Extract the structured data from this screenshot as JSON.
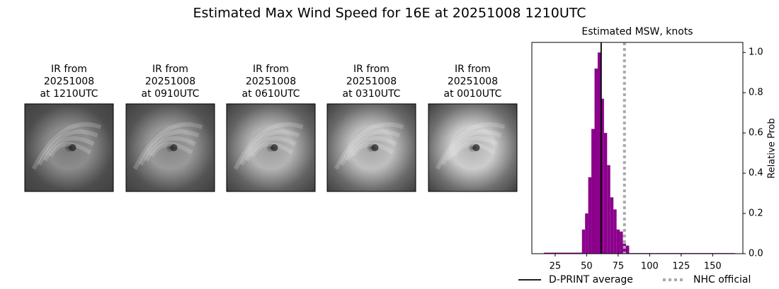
{
  "title": "Estimated Max Wind Speed for 16E at 20251008 1210UTC",
  "panels": [
    {
      "lines": [
        "IR from",
        "20251008",
        "at 1210UTC"
      ]
    },
    {
      "lines": [
        "IR from",
        "20251008",
        "at 0910UTC"
      ]
    },
    {
      "lines": [
        "IR from",
        "20251008",
        "at 0610UTC"
      ]
    },
    {
      "lines": [
        "IR from",
        "20251008",
        "at 0310UTC"
      ]
    },
    {
      "lines": [
        "IR from",
        "20251008",
        "at 0010UTC"
      ]
    }
  ],
  "chart_data": {
    "type": "histogram",
    "title": "Estimated MSW, knots",
    "y_label": "Relative Prob",
    "bins": [
      16,
      46.25,
      48.75,
      51.25,
      53.75,
      56.25,
      58.75,
      61.25,
      63.75,
      66.25,
      68.75,
      71.25,
      73.75,
      76.25,
      78.75,
      81.25,
      83.75,
      168
    ],
    "values": [
      0.005,
      0.12,
      0.2,
      0.38,
      0.62,
      0.92,
      1.0,
      0.77,
      0.6,
      0.44,
      0.28,
      0.22,
      0.12,
      0.11,
      0.05,
      0.04,
      0.003
    ],
    "color": "#8b008b",
    "xlim": [
      6.5,
      174
    ],
    "ylim": [
      0,
      1.05
    ],
    "xticks": [
      25,
      50,
      75,
      100,
      125,
      150
    ],
    "yticks": [
      {
        "value": 0,
        "label": "0.0"
      },
      0.2,
      0.4,
      0.6,
      0.8,
      {
        "value": 1,
        "label": "1.0"
      }
    ],
    "y_axis_side": "right",
    "lines": [
      {
        "name": "D-PRINT average",
        "x": 61.5,
        "color": "#000000",
        "style": "solid"
      },
      {
        "name": "NHC official",
        "x": 80,
        "color": "#aaaaaa",
        "style": "dotted"
      }
    ]
  }
}
